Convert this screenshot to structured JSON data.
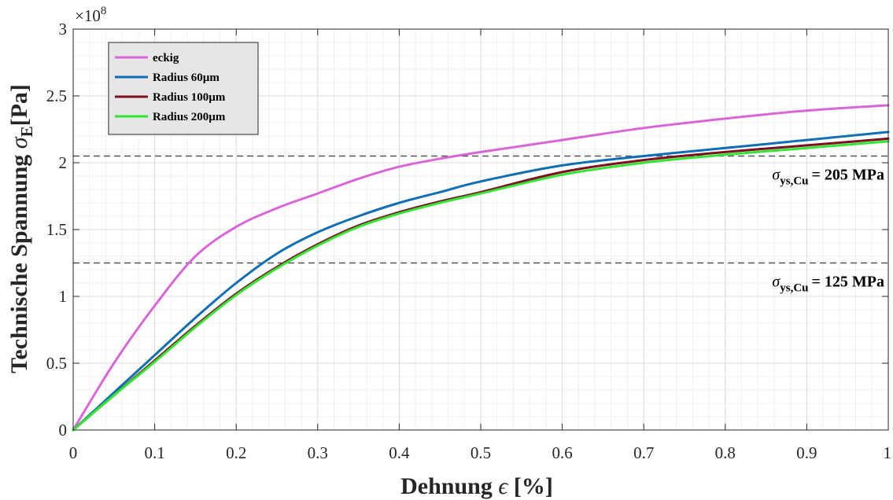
{
  "chart_data": {
    "type": "line",
    "xlabel": "Dehnung",
    "xlabel_symbol": "ϵ",
    "xlabel_unit": "[%]",
    "ylabel": "Technische Spannung",
    "ylabel_symbol": "σ",
    "ylabel_subscript": "E",
    "ylabel_unit": "[Pa]",
    "y_exponent_base": "×10",
    "y_exponent": "8",
    "xlim": [
      0,
      1
    ],
    "ylim": [
      0,
      3
    ],
    "x_ticks": [
      0,
      0.1,
      0.2,
      0.3,
      0.4,
      0.5,
      0.6,
      0.7,
      0.8,
      0.9,
      1
    ],
    "x_tick_labels": [
      "0",
      "0.1",
      "0.2",
      "0.3",
      "0.4",
      "0.5",
      "0.6",
      "0.7",
      "0.8",
      "0.9",
      "1"
    ],
    "y_ticks": [
      0,
      0.5,
      1,
      1.5,
      2,
      2.5,
      3
    ],
    "y_tick_labels": [
      "0",
      "0.5",
      "1",
      "1.5",
      "2",
      "2.5",
      "3"
    ],
    "grid": true,
    "minor_grid": true,
    "legend_position": "top-left",
    "series": [
      {
        "name": "eckig",
        "color": "#d966d9",
        "x": [
          0,
          0.05,
          0.1,
          0.15,
          0.2,
          0.25,
          0.3,
          0.35,
          0.4,
          0.45,
          0.5,
          0.6,
          0.7,
          0.8,
          0.9,
          1.0
        ],
        "y": [
          0,
          0.5,
          0.93,
          1.3,
          1.52,
          1.66,
          1.77,
          1.88,
          1.97,
          2.03,
          2.08,
          2.17,
          2.26,
          2.33,
          2.39,
          2.43
        ]
      },
      {
        "name": "Radius 60µm",
        "color": "#0f6eb5",
        "x": [
          0,
          0.05,
          0.1,
          0.15,
          0.2,
          0.25,
          0.3,
          0.35,
          0.4,
          0.45,
          0.5,
          0.6,
          0.7,
          0.8,
          0.9,
          1.0
        ],
        "y": [
          0,
          0.28,
          0.56,
          0.84,
          1.1,
          1.32,
          1.48,
          1.6,
          1.7,
          1.78,
          1.86,
          1.98,
          2.05,
          2.11,
          2.17,
          2.23
        ]
      },
      {
        "name": "Radius 100µm",
        "color": "#7d1020",
        "x": [
          0,
          0.05,
          0.1,
          0.15,
          0.2,
          0.25,
          0.3,
          0.35,
          0.4,
          0.45,
          0.5,
          0.6,
          0.7,
          0.8,
          0.9,
          1.0
        ],
        "y": [
          0,
          0.26,
          0.52,
          0.78,
          1.02,
          1.22,
          1.39,
          1.53,
          1.63,
          1.71,
          1.78,
          1.93,
          2.02,
          2.08,
          2.13,
          2.18
        ]
      },
      {
        "name": "Radius 200µm",
        "color": "#33e633",
        "x": [
          0,
          0.05,
          0.1,
          0.15,
          0.2,
          0.25,
          0.3,
          0.35,
          0.4,
          0.45,
          0.5,
          0.6,
          0.7,
          0.8,
          0.9,
          1.0
        ],
        "y": [
          0,
          0.26,
          0.51,
          0.77,
          1.01,
          1.21,
          1.38,
          1.52,
          1.62,
          1.7,
          1.77,
          1.91,
          2.0,
          2.06,
          2.11,
          2.16
        ]
      }
    ],
    "reference_lines": [
      {
        "y": 2.05,
        "style": "dashed",
        "color": "#555555",
        "label_sigma": "σ",
        "label_sub": "ys,Cu",
        "label_value": "= 205 MPa"
      },
      {
        "y": 1.25,
        "style": "dashed",
        "color": "#555555",
        "label_sigma": "σ",
        "label_sub": "ys,Cu",
        "label_value": "= 125 MPa"
      }
    ]
  }
}
